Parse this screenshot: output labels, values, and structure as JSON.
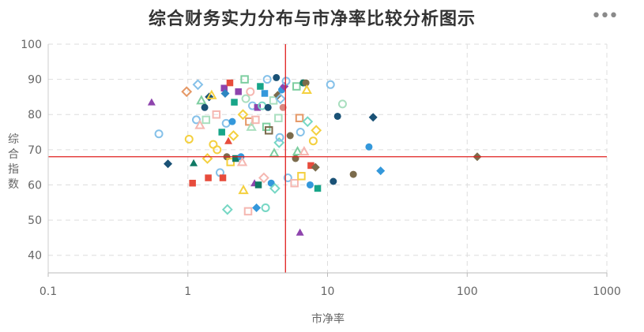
{
  "title": "综合财务实力分布与市净率比较分析图示",
  "menu_icon": "more-horizontal-icon",
  "colors": {
    "title": "#333333",
    "grid": "#dddddd",
    "axis_text": "#666666",
    "reference_line": "#e0201f",
    "menu_icon": "#8a8a8a",
    "palette": [
      "#e74c3c",
      "#3498db",
      "#2e86c1",
      "#1a5276",
      "#17a589",
      "#117a65",
      "#8e44ad",
      "#f4d03f",
      "#a9dfbf",
      "#76d7c4",
      "#f5b7b1",
      "#85c1e9",
      "#7dcea0",
      "#d98880",
      "#7b6b4c",
      "#e59866"
    ]
  },
  "chart_data": {
    "type": "scatter",
    "title": "综合财务实力分布与市净率比较分析图示",
    "xlabel": "市净率",
    "ylabel": "综合指数",
    "x_scale": "log",
    "xlim": [
      0.1,
      1000
    ],
    "ylim": [
      35,
      100
    ],
    "x_ticks": [
      0.1,
      1,
      10,
      100,
      1000
    ],
    "x_tick_labels": [
      "0.1",
      "1",
      "10",
      "100",
      "1000"
    ],
    "y_ticks": [
      40,
      50,
      60,
      70,
      80,
      90,
      100
    ],
    "grid": true,
    "reference_lines": {
      "x": 5,
      "y": 68
    },
    "points": [
      {
        "x": 0.55,
        "y": 83.5,
        "shape": "triangle",
        "color": "#8e44ad",
        "filled": true
      },
      {
        "x": 0.62,
        "y": 74.5,
        "shape": "circle",
        "color": "#85c1e9",
        "filled": false
      },
      {
        "x": 0.72,
        "y": 66,
        "shape": "diamond",
        "color": "#1a5276",
        "filled": true
      },
      {
        "x": 0.98,
        "y": 86.5,
        "shape": "diamond",
        "color": "#e59866",
        "filled": false
      },
      {
        "x": 1.02,
        "y": 73,
        "shape": "circle",
        "color": "#f4d03f",
        "filled": false
      },
      {
        "x": 1.08,
        "y": 60.5,
        "shape": "square",
        "color": "#e74c3c",
        "filled": true
      },
      {
        "x": 1.1,
        "y": 66.2,
        "shape": "triangle",
        "color": "#117a65",
        "filled": true
      },
      {
        "x": 1.15,
        "y": 78.5,
        "shape": "circle",
        "color": "#85c1e9",
        "filled": false
      },
      {
        "x": 1.18,
        "y": 88.5,
        "shape": "diamond",
        "color": "#85c1e9",
        "filled": false
      },
      {
        "x": 1.22,
        "y": 77,
        "shape": "triangle",
        "color": "#f5b7b1",
        "filled": false
      },
      {
        "x": 1.25,
        "y": 84,
        "shape": "triangle",
        "color": "#7dcea0",
        "filled": false
      },
      {
        "x": 1.32,
        "y": 82,
        "shape": "circle",
        "color": "#1a5276",
        "filled": true
      },
      {
        "x": 1.35,
        "y": 78.5,
        "shape": "square",
        "color": "#a9dfbf",
        "filled": false
      },
      {
        "x": 1.38,
        "y": 67.5,
        "shape": "diamond",
        "color": "#f4d03f",
        "filled": false
      },
      {
        "x": 1.4,
        "y": 62,
        "shape": "square",
        "color": "#e74c3c",
        "filled": true
      },
      {
        "x": 1.42,
        "y": 85,
        "shape": "diamond",
        "color": "#1a5276",
        "filled": true
      },
      {
        "x": 1.48,
        "y": 85.5,
        "shape": "triangle",
        "color": "#f4d03f",
        "filled": false
      },
      {
        "x": 1.52,
        "y": 71.5,
        "shape": "circle",
        "color": "#f4d03f",
        "filled": false
      },
      {
        "x": 1.6,
        "y": 80,
        "shape": "square",
        "color": "#f5b7b1",
        "filled": false
      },
      {
        "x": 1.62,
        "y": 70,
        "shape": "circle",
        "color": "#f4d03f",
        "filled": false
      },
      {
        "x": 1.7,
        "y": 63.5,
        "shape": "circle",
        "color": "#85c1e9",
        "filled": false
      },
      {
        "x": 1.75,
        "y": 75,
        "shape": "square",
        "color": "#17a589",
        "filled": true
      },
      {
        "x": 1.78,
        "y": 62,
        "shape": "square",
        "color": "#e74c3c",
        "filled": true
      },
      {
        "x": 1.82,
        "y": 87.5,
        "shape": "square",
        "color": "#8e44ad",
        "filled": true
      },
      {
        "x": 1.85,
        "y": 86,
        "shape": "diamond",
        "color": "#2e86c1",
        "filled": true
      },
      {
        "x": 1.88,
        "y": 77.5,
        "shape": "circle",
        "color": "#85c1e9",
        "filled": false
      },
      {
        "x": 1.9,
        "y": 68,
        "shape": "circle",
        "color": "#7b6b4c",
        "filled": true
      },
      {
        "x": 1.92,
        "y": 53,
        "shape": "diamond",
        "color": "#76d7c4",
        "filled": false
      },
      {
        "x": 1.95,
        "y": 72.5,
        "shape": "triangle",
        "color": "#e74c3c",
        "filled": true
      },
      {
        "x": 2.0,
        "y": 89,
        "shape": "square",
        "color": "#e74c3c",
        "filled": true
      },
      {
        "x": 2.02,
        "y": 66.5,
        "shape": "square",
        "color": "#f4d03f",
        "filled": false
      },
      {
        "x": 2.08,
        "y": 78,
        "shape": "circle",
        "color": "#3498db",
        "filled": true
      },
      {
        "x": 2.12,
        "y": 74,
        "shape": "diamond",
        "color": "#f4d03f",
        "filled": false
      },
      {
        "x": 2.15,
        "y": 83.5,
        "shape": "square",
        "color": "#17a589",
        "filled": true
      },
      {
        "x": 2.2,
        "y": 67.5,
        "shape": "square",
        "color": "#117a65",
        "filled": true
      },
      {
        "x": 2.3,
        "y": 86.5,
        "shape": "square",
        "color": "#8e44ad",
        "filled": true
      },
      {
        "x": 2.4,
        "y": 68,
        "shape": "circle",
        "color": "#3498db",
        "filled": true
      },
      {
        "x": 2.45,
        "y": 66.5,
        "shape": "triangle",
        "color": "#f5b7b1",
        "filled": false
      },
      {
        "x": 2.48,
        "y": 80,
        "shape": "diamond",
        "color": "#f4d03f",
        "filled": false
      },
      {
        "x": 2.5,
        "y": 58.5,
        "shape": "triangle",
        "color": "#f4d03f",
        "filled": false
      },
      {
        "x": 2.55,
        "y": 90,
        "shape": "square",
        "color": "#7dcea0",
        "filled": false
      },
      {
        "x": 2.6,
        "y": 84.5,
        "shape": "circle",
        "color": "#a9dfbf",
        "filled": false
      },
      {
        "x": 2.7,
        "y": 52.5,
        "shape": "square",
        "color": "#f5b7b1",
        "filled": false
      },
      {
        "x": 2.75,
        "y": 78,
        "shape": "square",
        "color": "#e59866",
        "filled": false
      },
      {
        "x": 2.8,
        "y": 86.5,
        "shape": "circle",
        "color": "#f5b7b1",
        "filled": false
      },
      {
        "x": 2.85,
        "y": 76.5,
        "shape": "triangle",
        "color": "#a9dfbf",
        "filled": false
      },
      {
        "x": 2.9,
        "y": 82.5,
        "shape": "circle",
        "color": "#85c1e9",
        "filled": false
      },
      {
        "x": 3.0,
        "y": 60.5,
        "shape": "triangle",
        "color": "#8e44ad",
        "filled": true
      },
      {
        "x": 3.05,
        "y": 78.5,
        "shape": "square",
        "color": "#f5b7b1",
        "filled": false
      },
      {
        "x": 3.1,
        "y": 53.5,
        "shape": "diamond",
        "color": "#3498db",
        "filled": true
      },
      {
        "x": 3.15,
        "y": 82,
        "shape": "square",
        "color": "#8e44ad",
        "filled": true
      },
      {
        "x": 3.2,
        "y": 60,
        "shape": "square",
        "color": "#117a65",
        "filled": true
      },
      {
        "x": 3.3,
        "y": 88,
        "shape": "square",
        "color": "#17a589",
        "filled": true
      },
      {
        "x": 3.4,
        "y": 82.5,
        "shape": "circle",
        "color": "#76d7c4",
        "filled": false
      },
      {
        "x": 3.5,
        "y": 62,
        "shape": "diamond",
        "color": "#f5b7b1",
        "filled": false
      },
      {
        "x": 3.55,
        "y": 86,
        "shape": "square",
        "color": "#3498db",
        "filled": true
      },
      {
        "x": 3.6,
        "y": 53.5,
        "shape": "circle",
        "color": "#76d7c4",
        "filled": false
      },
      {
        "x": 3.65,
        "y": 76.5,
        "shape": "square",
        "color": "#7dcea0",
        "filled": false
      },
      {
        "x": 3.7,
        "y": 90,
        "shape": "circle",
        "color": "#85c1e9",
        "filled": false
      },
      {
        "x": 3.75,
        "y": 82,
        "shape": "circle",
        "color": "#1a5276",
        "filled": true
      },
      {
        "x": 3.8,
        "y": 75.5,
        "shape": "square",
        "color": "#7b6b4c",
        "filled": false
      },
      {
        "x": 3.95,
        "y": 60.5,
        "shape": "circle",
        "color": "#3498db",
        "filled": true
      },
      {
        "x": 4.1,
        "y": 84,
        "shape": "square",
        "color": "#a9dfbf",
        "filled": false
      },
      {
        "x": 4.15,
        "y": 69,
        "shape": "triangle",
        "color": "#7dcea0",
        "filled": false
      },
      {
        "x": 4.2,
        "y": 59,
        "shape": "diamond",
        "color": "#76d7c4",
        "filled": false
      },
      {
        "x": 4.3,
        "y": 90.5,
        "shape": "circle",
        "color": "#1a5276",
        "filled": true
      },
      {
        "x": 4.4,
        "y": 85.5,
        "shape": "diamond",
        "color": "#7b6b4c",
        "filled": true
      },
      {
        "x": 4.45,
        "y": 79,
        "shape": "square",
        "color": "#a9dfbf",
        "filled": false
      },
      {
        "x": 4.5,
        "y": 72,
        "shape": "diamond",
        "color": "#76d7c4",
        "filled": false
      },
      {
        "x": 4.55,
        "y": 73.5,
        "shape": "circle",
        "color": "#85c1e9",
        "filled": false
      },
      {
        "x": 4.6,
        "y": 84.5,
        "shape": "diamond",
        "color": "#85c1e9",
        "filled": false
      },
      {
        "x": 4.7,
        "y": 87,
        "shape": "circle",
        "color": "#3498db",
        "filled": true
      },
      {
        "x": 4.8,
        "y": 82,
        "shape": "circle",
        "color": "#d98880",
        "filled": true
      },
      {
        "x": 4.9,
        "y": 88,
        "shape": "diamond",
        "color": "#8e44ad",
        "filled": true
      },
      {
        "x": 5.05,
        "y": 89.5,
        "shape": "circle",
        "color": "#85c1e9",
        "filled": false
      },
      {
        "x": 5.2,
        "y": 62,
        "shape": "circle",
        "color": "#85c1e9",
        "filled": false
      },
      {
        "x": 5.4,
        "y": 74,
        "shape": "circle",
        "color": "#7b6b4c",
        "filled": true
      },
      {
        "x": 5.8,
        "y": 60.5,
        "shape": "square",
        "color": "#f5b7b1",
        "filled": false
      },
      {
        "x": 5.9,
        "y": 67.5,
        "shape": "circle",
        "color": "#7b6b4c",
        "filled": true
      },
      {
        "x": 6.0,
        "y": 88,
        "shape": "square",
        "color": "#7dcea0",
        "filled": false
      },
      {
        "x": 6.1,
        "y": 69.5,
        "shape": "triangle",
        "color": "#7dcea0",
        "filled": false
      },
      {
        "x": 6.3,
        "y": 79,
        "shape": "square",
        "color": "#e59866",
        "filled": false
      },
      {
        "x": 6.35,
        "y": 46.5,
        "shape": "triangle",
        "color": "#8e44ad",
        "filled": true
      },
      {
        "x": 6.4,
        "y": 75,
        "shape": "circle",
        "color": "#85c1e9",
        "filled": false
      },
      {
        "x": 6.5,
        "y": 62.5,
        "shape": "square",
        "color": "#f4d03f",
        "filled": false
      },
      {
        "x": 6.7,
        "y": 89,
        "shape": "circle",
        "color": "#117a65",
        "filled": true
      },
      {
        "x": 6.8,
        "y": 69.5,
        "shape": "triangle",
        "color": "#f5b7b1",
        "filled": false
      },
      {
        "x": 7.0,
        "y": 89,
        "shape": "circle",
        "color": "#7b6b4c",
        "filled": true
      },
      {
        "x": 7.1,
        "y": 87,
        "shape": "triangle",
        "color": "#f4d03f",
        "filled": false
      },
      {
        "x": 7.2,
        "y": 78,
        "shape": "diamond",
        "color": "#76d7c4",
        "filled": false
      },
      {
        "x": 7.5,
        "y": 60,
        "shape": "circle",
        "color": "#3498db",
        "filled": true
      },
      {
        "x": 7.6,
        "y": 65.5,
        "shape": "square",
        "color": "#e74c3c",
        "filled": true
      },
      {
        "x": 7.9,
        "y": 72.5,
        "shape": "circle",
        "color": "#f4d03f",
        "filled": false
      },
      {
        "x": 8.2,
        "y": 65,
        "shape": "diamond",
        "color": "#7b6b4c",
        "filled": true
      },
      {
        "x": 8.3,
        "y": 75.5,
        "shape": "diamond",
        "color": "#f4d03f",
        "filled": false
      },
      {
        "x": 8.5,
        "y": 59,
        "shape": "square",
        "color": "#17a589",
        "filled": true
      },
      {
        "x": 10.5,
        "y": 88.5,
        "shape": "circle",
        "color": "#85c1e9",
        "filled": false
      },
      {
        "x": 11.0,
        "y": 61,
        "shape": "circle",
        "color": "#1a5276",
        "filled": true
      },
      {
        "x": 11.8,
        "y": 79.5,
        "shape": "circle",
        "color": "#1a5276",
        "filled": true
      },
      {
        "x": 12.8,
        "y": 83,
        "shape": "circle",
        "color": "#a9dfbf",
        "filled": false
      },
      {
        "x": 15.3,
        "y": 63,
        "shape": "circle",
        "color": "#7b6b4c",
        "filled": true
      },
      {
        "x": 19.8,
        "y": 70.8,
        "shape": "circle",
        "color": "#3498db",
        "filled": true
      },
      {
        "x": 21.2,
        "y": 79.2,
        "shape": "diamond",
        "color": "#1a5276",
        "filled": true
      },
      {
        "x": 24.0,
        "y": 64,
        "shape": "diamond",
        "color": "#3498db",
        "filled": true
      },
      {
        "x": 118.0,
        "y": 68,
        "shape": "diamond",
        "color": "#7b6b4c",
        "filled": true
      }
    ]
  }
}
